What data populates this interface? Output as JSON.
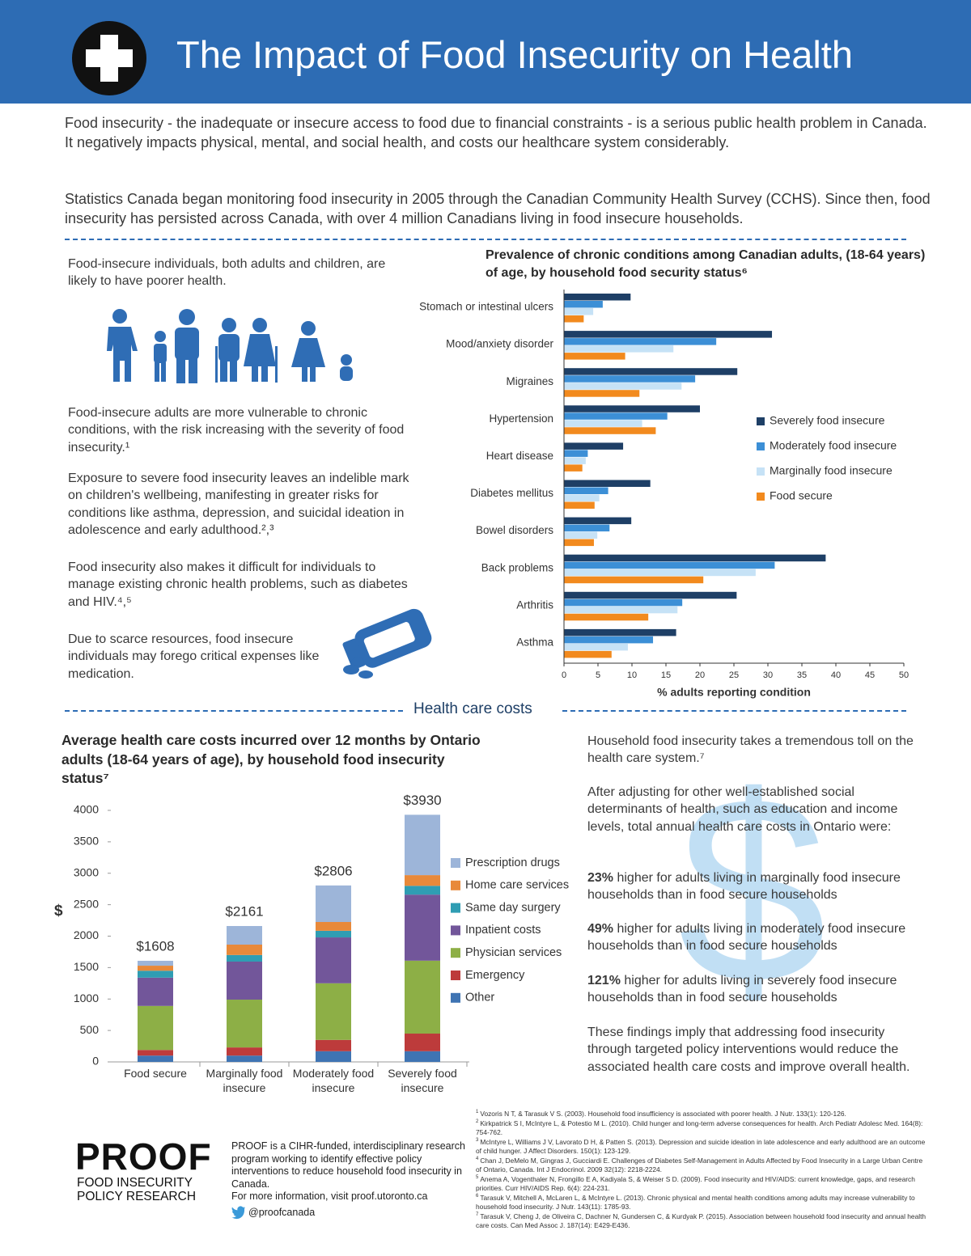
{
  "header": {
    "title": "The Impact of Food Insecurity on Health"
  },
  "intro": [
    "Food insecurity - the inadequate or insecure access to food due to financial constraints - is a serious public health problem in Canada. It negatively impacts physical, mental, and social health, and costs our healthcare system considerably.",
    "Statistics Canada began monitoring food insecurity in 2005 through the Canadian Community Health Survey (CCHS). Since then, food insecurity has persisted across Canada, with over 4 million Canadians living in food insecure households."
  ],
  "left_column": [
    "Food-insecure individuals, both adults and children, are likely to have poorer health.",
    "Food-insecure adults are more vulnerable to chronic conditions, with the risk increasing with the severity of food insecurity.¹",
    "Exposure to severe food insecurity leaves an indelible mark on children's wellbeing, manifesting in greater risks for conditions like asthma, depression, and suicidal ideation in adolescence and early adulthood.²,³",
    "Food insecurity also makes it difficult for individuals to manage existing chronic health problems, such as diabetes and HIV.⁴,⁵",
    "Due to scarce resources, food insecure individuals may forego critical expenses like medication."
  ],
  "section_heading": "Health care costs",
  "chart_data": [
    {
      "type": "bar",
      "orientation": "horizontal",
      "title": "Prevalence of chronic conditions among Canadian adults, (18-64 years) of age, by household food security status⁶",
      "x_label": "% adults reporting condition",
      "categories": [
        "Stomach or intestinal ulcers",
        "Mood/anxiety disorder",
        "Migraines",
        "Hypertension",
        "Heart disease",
        "Diabetes mellitus",
        "Bowel disorders",
        "Back problems",
        "Arthritis",
        "Asthma"
      ],
      "series": [
        {
          "name": "Severely food insecure",
          "color": "#1e3f66",
          "values": [
            9.8,
            30.6,
            25.5,
            20,
            8.7,
            12.7,
            9.9,
            38.5,
            25.4,
            16.5
          ]
        },
        {
          "name": "Moderately food insecure",
          "color": "#3c8fd6",
          "values": [
            5.7,
            22.4,
            19.3,
            15.2,
            3.5,
            6.5,
            6.7,
            31,
            17.4,
            13.1
          ]
        },
        {
          "name": "Marginally food insecure",
          "color": "#c6e2f6",
          "values": [
            4.3,
            16.1,
            17.3,
            11.5,
            3.2,
            5.2,
            4.9,
            28.2,
            16.7,
            9.4
          ]
        },
        {
          "name": "Food secure",
          "color": "#f28a1e",
          "values": [
            2.9,
            9,
            11.1,
            13.5,
            2.7,
            4.5,
            4.4,
            20.5,
            12.4,
            7
          ]
        }
      ],
      "xlim": [
        0,
        50
      ],
      "xticks": [
        0,
        5,
        10,
        15,
        20,
        25,
        30,
        35,
        40,
        45,
        50
      ],
      "grid": false,
      "legend": "right"
    },
    {
      "type": "stacked-bar",
      "title": "Average health care costs incurred over 12 months by Ontario adults (18-64 years of age), by household food insecurity status⁷",
      "y_label": "$",
      "categories": [
        "Food secure",
        "Marginally food insecure",
        "Moderately food insecure",
        "Severely food insecure"
      ],
      "total_labels": [
        "$1608",
        "$2161",
        "$2806",
        "$3930"
      ],
      "series": [
        {
          "name": "Prescription drugs",
          "color": "#9db5d9",
          "values": [
            78,
            296,
            581,
            960
          ]
        },
        {
          "name": "Home care services",
          "color": "#e8893a",
          "values": [
            80,
            165,
            140,
            170
          ]
        },
        {
          "name": "Same day surgery",
          "color": "#2f9db3",
          "values": [
            110,
            105,
            105,
            140
          ]
        },
        {
          "name": "Inpatient costs",
          "color": "#72569a",
          "values": [
            450,
            605,
            730,
            1050
          ]
        },
        {
          "name": "Physician services",
          "color": "#8daf46",
          "values": [
            700,
            760,
            900,
            1160
          ]
        },
        {
          "name": "Emergency",
          "color": "#bd3b3b",
          "values": [
            90,
            130,
            180,
            280
          ]
        },
        {
          "name": "Other",
          "color": "#3f74b3",
          "values": [
            100,
            100,
            170,
            170
          ]
        }
      ],
      "ylim": [
        0,
        4000
      ],
      "yticks": [
        0,
        500,
        1000,
        1500,
        2000,
        2500,
        3000,
        3500,
        4000
      ],
      "grid": false,
      "legend": "right"
    }
  ],
  "costs_text": {
    "lead": "Household food insecurity takes a tremendous toll on the health care system.⁷",
    "adjusting": "After adjusting for other well-established social determinants of health, such as education and income levels, total annual health care costs in Ontario were:",
    "findings": [
      {
        "bold": "23%",
        "text": " higher for adults living in marginally food insecure households than in food secure households"
      },
      {
        "bold": "49%",
        "text": " higher for adults living in moderately food insecure households than in food secure households"
      },
      {
        "bold": "121%",
        "text": " higher for adults living in severely food insecure households than in food secure households"
      }
    ],
    "conclusion": "These findings imply that addressing food insecurity through targeted policy interventions would reduce the associated health care costs and improve overall health."
  },
  "footer": {
    "logo": "PROOF",
    "logo_sub": [
      "FOOD INSECURITY",
      "POLICY RESEARCH"
    ],
    "about": "PROOF is a CIHR-funded, interdisciplinary research program working to identify effective policy interventions to reduce household food insecurity in Canada.",
    "more": "For more information, visit proof.utoronto.ca",
    "twitter": "@proofcanada"
  },
  "references": [
    {
      "number": "1",
      "text": "Vozoris N T, & Tarasuk V S. (2003). Household food insufficiency is associated with poorer health. J Nutr. 133(1): 120-126."
    },
    {
      "number": "2",
      "text": "Kirkpatrick S I, McIntyre L, & Potestio M L. (2010). Child hunger and long-term adverse consequences for health. Arch Pediatr Adolesc Med. 164(8): 754-762."
    },
    {
      "number": "3",
      "text": "McIntyre L, Williams J V, Lavorato D H, & Patten S. (2013). Depression and suicide ideation in late adolescence and early adulthood are an outcome of child hunger. J Affect Disorders. 150(1): 123-129."
    },
    {
      "number": "4",
      "text": "Chan J, DeMelo M, Gingras J, Gucciardi E. Challenges of Diabetes Self-Management in Adults Affected by Food Insecurity in a Large Urban Centre of Ontario, Canada. Int J Endocrinol. 2009 32(12): 2218-2224."
    },
    {
      "number": "5",
      "text": "Anema A, Vogenthaler N, Frongillo E A, Kadiyala S, & Weiser S D. (2009). Food insecurity and HIV/AIDS: current knowledge, gaps, and research priorities. Curr HIV/AIDS Rep. 6(4): 224-231."
    },
    {
      "number": "6",
      "text": "Tarasuk V, Mitchell A, McLaren L, & McIntyre L. (2013). Chronic physical and mental health conditions among adults may increase vulnerability to household food insecurity. J Nutr. 143(11): 1785-93."
    },
    {
      "number": "7",
      "text": "Tarasuk V, Cheng J, de Oliveira C, Dachner N, Gundersen C, & Kurdyak P. (2015). Association between household food insecurity and annual health care costs. Can Med Assoc J. 187(14): E429-E436."
    }
  ]
}
